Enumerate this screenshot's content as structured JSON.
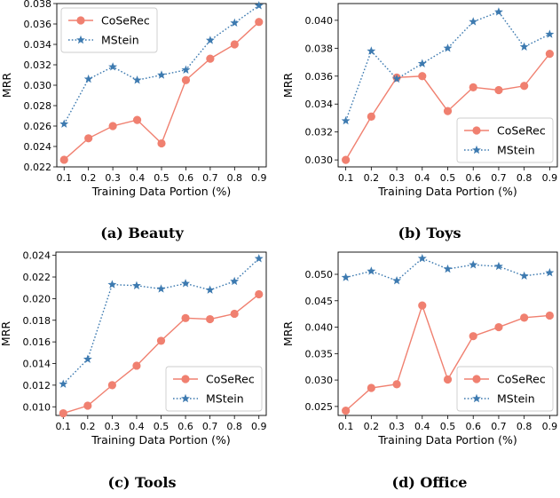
{
  "chart_data": [
    {
      "type": "line",
      "caption": "(a) Beauty",
      "xlabel": "Training Data Portion (%)",
      "ylabel": "MRR",
      "x": [
        0.1,
        0.2,
        0.3,
        0.4,
        0.5,
        0.6,
        0.7,
        0.8,
        0.9
      ],
      "xticks": [
        "0.1",
        "0.2",
        "0.3",
        "0.4",
        "0.5",
        "0.6",
        "0.7",
        "0.8",
        "0.9"
      ],
      "yticks": [
        "0.022",
        "0.024",
        "0.026",
        "0.028",
        "0.030",
        "0.032",
        "0.034",
        "0.036",
        "0.038"
      ],
      "ylim": [
        0.022,
        0.038
      ],
      "legend_loc": "top-left",
      "series": [
        {
          "name": "CoSeRec",
          "color": "#f08070",
          "marker": "circle",
          "line": "solid",
          "values": [
            0.0227,
            0.0248,
            0.026,
            0.0266,
            0.0243,
            0.0305,
            0.0326,
            0.034,
            0.0362
          ]
        },
        {
          "name": "MStein",
          "color": "#3d7ab0",
          "marker": "star",
          "line": "dotted",
          "values": [
            0.0262,
            0.0306,
            0.0318,
            0.0305,
            0.031,
            0.0315,
            0.0344,
            0.0361,
            0.0378
          ]
        }
      ]
    },
    {
      "type": "line",
      "caption": "(b) Toys",
      "xlabel": "Training Data Portion (%)",
      "ylabel": "MRR",
      "x": [
        0.1,
        0.2,
        0.3,
        0.4,
        0.5,
        0.6,
        0.7,
        0.8,
        0.9
      ],
      "xticks": [
        "0.1",
        "0.2",
        "0.3",
        "0.4",
        "0.5",
        "0.6",
        "0.7",
        "0.8",
        "0.9"
      ],
      "yticks": [
        "0.030",
        "0.032",
        "0.034",
        "0.036",
        "0.038",
        "0.040"
      ],
      "ylim": [
        0.0295,
        0.0412
      ],
      "legend_loc": "bottom-right",
      "series": [
        {
          "name": "CoSeRec",
          "color": "#f08070",
          "marker": "circle",
          "line": "solid",
          "values": [
            0.03,
            0.0331,
            0.0359,
            0.036,
            0.0335,
            0.0352,
            0.035,
            0.0353,
            0.0376
          ]
        },
        {
          "name": "MStein",
          "color": "#3d7ab0",
          "marker": "star",
          "line": "dotted",
          "values": [
            0.0328,
            0.0378,
            0.0358,
            0.0369,
            0.038,
            0.0399,
            0.0406,
            0.0381,
            0.039
          ]
        }
      ]
    },
    {
      "type": "line",
      "caption": "(c) Tools",
      "xlabel": "Training Data Portion (%)",
      "ylabel": "MRR",
      "x": [
        0.1,
        0.2,
        0.3,
        0.4,
        0.5,
        0.6,
        0.7,
        0.8,
        0.9
      ],
      "xticks": [
        "0.1",
        "0.2",
        "0.3",
        "0.4",
        "0.5",
        "0.6",
        "0.7",
        "0.8",
        "0.9"
      ],
      "yticks": [
        "0.010",
        "0.012",
        "0.014",
        "0.016",
        "0.018",
        "0.020",
        "0.022",
        "0.024"
      ],
      "ylim": [
        0.0092,
        0.0243
      ],
      "legend_loc": "bottom-right",
      "series": [
        {
          "name": "CoSeRec",
          "color": "#f08070",
          "marker": "circle",
          "line": "solid",
          "values": [
            0.0094,
            0.0101,
            0.012,
            0.0138,
            0.0161,
            0.0182,
            0.0181,
            0.0186,
            0.0204
          ]
        },
        {
          "name": "MStein",
          "color": "#3d7ab0",
          "marker": "star",
          "line": "dotted",
          "values": [
            0.0121,
            0.0144,
            0.0213,
            0.0212,
            0.0209,
            0.0214,
            0.0208,
            0.0216,
            0.0237
          ]
        }
      ]
    },
    {
      "type": "line",
      "caption": "(d) Office",
      "xlabel": "Training Data Portion (%)",
      "ylabel": "MRR",
      "x": [
        0.1,
        0.2,
        0.3,
        0.4,
        0.5,
        0.6,
        0.7,
        0.8,
        0.9
      ],
      "xticks": [
        "0.1",
        "0.2",
        "0.3",
        "0.4",
        "0.5",
        "0.6",
        "0.7",
        "0.8",
        "0.9"
      ],
      "yticks": [
        "0.025",
        "0.030",
        "0.035",
        "0.040",
        "0.045",
        "0.050"
      ],
      "ylim": [
        0.0233,
        0.0542
      ],
      "legend_loc": "bottom-right",
      "series": [
        {
          "name": "CoSeRec",
          "color": "#f08070",
          "marker": "circle",
          "line": "solid",
          "values": [
            0.0242,
            0.0285,
            0.0292,
            0.0441,
            0.0301,
            0.0383,
            0.04,
            0.0418,
            0.0422
          ]
        },
        {
          "name": "MStein",
          "color": "#3d7ab0",
          "marker": "star",
          "line": "dotted",
          "values": [
            0.0494,
            0.0506,
            0.0488,
            0.053,
            0.051,
            0.0518,
            0.0515,
            0.0497,
            0.0503
          ]
        }
      ]
    }
  ]
}
